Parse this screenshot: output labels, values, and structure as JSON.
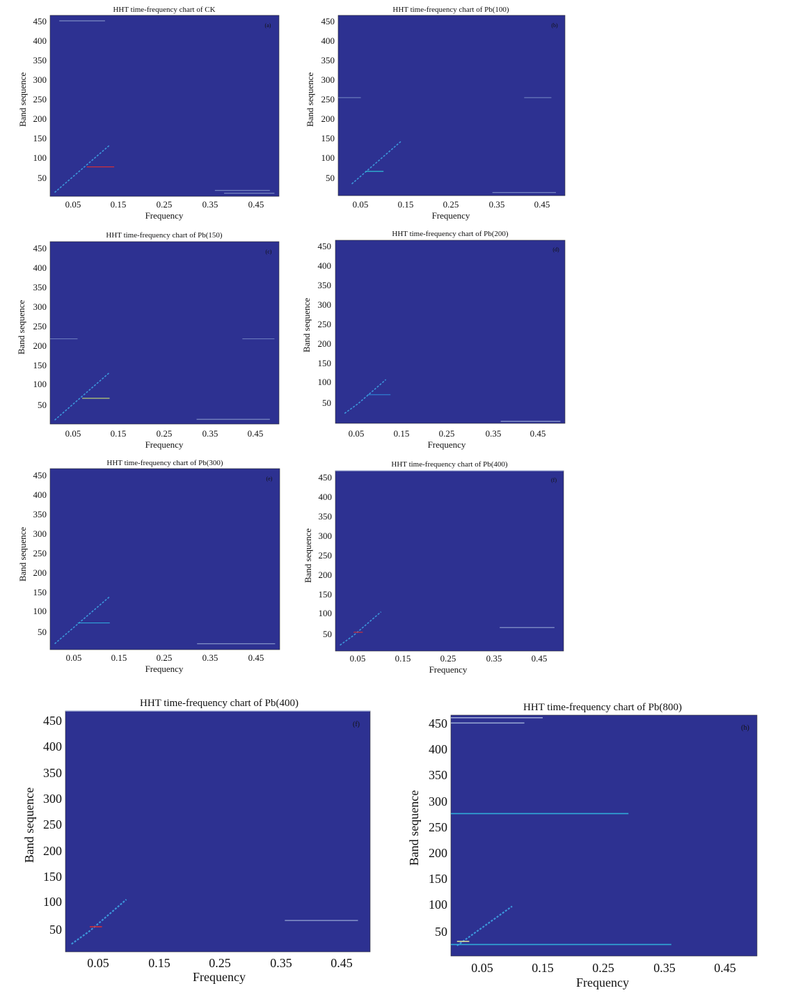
{
  "chart_data": [
    {
      "type": "heatmap",
      "panel_label": "(a)",
      "title": "HHT time-frequency chart of CK",
      "xlabel": "Frequency",
      "ylabel": "Band sequence",
      "xticks": [
        0.05,
        0.15,
        0.25,
        0.35,
        0.45
      ],
      "yticks": [
        50,
        100,
        150,
        200,
        250,
        300,
        350,
        400,
        450
      ],
      "xlim": [
        0.0,
        0.5
      ],
      "ylim": [
        0,
        460
      ],
      "background_color": "#2d3191",
      "ridge": [
        [
          0.01,
          10
        ],
        [
          0.04,
          40
        ],
        [
          0.07,
          70
        ],
        [
          0.1,
          100
        ],
        [
          0.13,
          130
        ]
      ],
      "lines": [
        {
          "y": 446,
          "x0": 0.02,
          "x1": 0.12,
          "color": "#8fa0d0"
        },
        {
          "y": 75,
          "x0": 0.08,
          "x1": 0.14,
          "color": "#e03030"
        },
        {
          "y": 15,
          "x0": 0.36,
          "x1": 0.48,
          "color": "#7f8fc8"
        },
        {
          "y": 8,
          "x0": 0.38,
          "x1": 0.49,
          "color": "#7f8fc8"
        }
      ]
    },
    {
      "type": "heatmap",
      "panel_label": "(b)",
      "title": "HHT time-frequency chart of Pb(100)",
      "xlabel": "Frequency",
      "ylabel": "Band sequence",
      "xticks": [
        0.05,
        0.15,
        0.25,
        0.35,
        0.45
      ],
      "yticks": [
        50,
        100,
        150,
        200,
        250,
        300,
        350,
        400,
        450
      ],
      "xlim": [
        0.0,
        0.5
      ],
      "ylim": [
        0,
        460
      ],
      "background_color": "#2d3191",
      "ridge": [
        [
          0.03,
          30
        ],
        [
          0.055,
          55
        ],
        [
          0.08,
          80
        ],
        [
          0.11,
          110
        ],
        [
          0.14,
          140
        ]
      ],
      "lines": [
        {
          "y": 62,
          "x0": 0.06,
          "x1": 0.1,
          "color": "#30d0e0"
        },
        {
          "y": 250,
          "x0": 0.0,
          "x1": 0.05,
          "color": "#6f80c0"
        },
        {
          "y": 250,
          "x0": 0.41,
          "x1": 0.47,
          "color": "#6f80c0"
        },
        {
          "y": 8,
          "x0": 0.34,
          "x1": 0.48,
          "color": "#7f8fc8"
        }
      ]
    },
    {
      "type": "heatmap",
      "panel_label": "(c)",
      "title": "HHT time-frequency chart of Pb(150)",
      "xlabel": "Frequency",
      "ylabel": "Band sequence",
      "xticks": [
        0.05,
        0.15,
        0.25,
        0.35,
        0.45
      ],
      "yticks": [
        50,
        100,
        150,
        200,
        250,
        300,
        350,
        400,
        450
      ],
      "xlim": [
        0.0,
        0.5
      ],
      "ylim": [
        0,
        460
      ],
      "background_color": "#2d3191",
      "ridge": [
        [
          0.01,
          10
        ],
        [
          0.04,
          40
        ],
        [
          0.07,
          70
        ],
        [
          0.1,
          100
        ],
        [
          0.13,
          130
        ]
      ],
      "lines": [
        {
          "y": 65,
          "x0": 0.07,
          "x1": 0.13,
          "color": "#c8e070"
        },
        {
          "y": 215,
          "x0": 0.0,
          "x1": 0.06,
          "color": "#6f80c0"
        },
        {
          "y": 215,
          "x0": 0.42,
          "x1": 0.49,
          "color": "#6f80c0"
        },
        {
          "y": 12,
          "x0": 0.32,
          "x1": 0.48,
          "color": "#8f9fd0"
        }
      ]
    },
    {
      "type": "heatmap",
      "panel_label": "(d)",
      "title": "HHT time-frequency chart of Pb(200)",
      "xlabel": "Frequency",
      "ylabel": "Band sequence",
      "xticks": [
        0.05,
        0.15,
        0.25,
        0.35,
        0.45
      ],
      "yticks": [
        50,
        100,
        150,
        200,
        250,
        300,
        350,
        400,
        450
      ],
      "xlim": [
        0.0,
        0.5
      ],
      "ylim": [
        0,
        460
      ],
      "background_color": "#2d3191",
      "ridge": [
        [
          0.02,
          25
        ],
        [
          0.05,
          50
        ],
        [
          0.08,
          80
        ],
        [
          0.11,
          110
        ]
      ],
      "lines": [
        {
          "y": 72,
          "x0": 0.07,
          "x1": 0.12,
          "color": "#3090e0"
        },
        {
          "y": 5,
          "x0": 0.36,
          "x1": 0.49,
          "color": "#9fb0d8"
        }
      ]
    },
    {
      "type": "heatmap",
      "panel_label": "(e)",
      "title": "HHT time-frequency chart of Pb(300)",
      "xlabel": "Frequency",
      "ylabel": "Band sequence",
      "xticks": [
        0.05,
        0.15,
        0.25,
        0.35,
        0.45
      ],
      "yticks": [
        50,
        100,
        150,
        200,
        250,
        300,
        350,
        400,
        450
      ],
      "xlim": [
        0.0,
        0.5
      ],
      "ylim": [
        0,
        460
      ],
      "background_color": "#2d3191",
      "ridge": [
        [
          0.01,
          15
        ],
        [
          0.04,
          45
        ],
        [
          0.07,
          75
        ],
        [
          0.1,
          105
        ],
        [
          0.13,
          135
        ]
      ],
      "lines": [
        {
          "y": 68,
          "x0": 0.06,
          "x1": 0.13,
          "color": "#30b0e0"
        },
        {
          "y": 15,
          "x0": 0.32,
          "x1": 0.49,
          "color": "#8f9fd0"
        }
      ]
    },
    {
      "type": "heatmap",
      "panel_label": "(f)",
      "title": "HHT time-frequency chart of Pb(400)",
      "xlabel": "Frequency",
      "ylabel": "Band sequence",
      "xticks": [
        0.05,
        0.15,
        0.25,
        0.35,
        0.45
      ],
      "yticks": [
        50,
        100,
        150,
        200,
        250,
        300,
        350,
        400,
        450
      ],
      "xlim": [
        0.0,
        0.5
      ],
      "ylim": [
        0,
        460
      ],
      "background_color": "#2d3191",
      "ridge": [
        [
          0.01,
          15
        ],
        [
          0.04,
          40
        ],
        [
          0.07,
          70
        ],
        [
          0.1,
          100
        ]
      ],
      "lines": [
        {
          "y": 48,
          "x0": 0.04,
          "x1": 0.06,
          "color": "#e03030"
        },
        {
          "y": 460,
          "x0": 0.0,
          "x1": 0.5,
          "color": "#b0bce0"
        },
        {
          "y": 60,
          "x0": 0.36,
          "x1": 0.48,
          "color": "#8f9fd0"
        }
      ]
    },
    {
      "type": "heatmap",
      "panel_label": "(f)",
      "title": "HHT time-frequency chart of Pb(400)",
      "xlabel": "Frequency",
      "ylabel": "Band sequence",
      "xticks": [
        0.05,
        0.15,
        0.25,
        0.35,
        0.45
      ],
      "yticks": [
        50,
        100,
        150,
        200,
        250,
        300,
        350,
        400,
        450
      ],
      "xlim": [
        0.0,
        0.5
      ],
      "ylim": [
        0,
        460
      ],
      "background_color": "#2d3191",
      "ridge": [
        [
          0.01,
          15
        ],
        [
          0.04,
          40
        ],
        [
          0.07,
          70
        ],
        [
          0.1,
          100
        ]
      ],
      "lines": [
        {
          "y": 48,
          "x0": 0.04,
          "x1": 0.06,
          "color": "#e03030"
        },
        {
          "y": 460,
          "x0": 0.0,
          "x1": 0.5,
          "color": "#b0bce0"
        },
        {
          "y": 60,
          "x0": 0.36,
          "x1": 0.48,
          "color": "#8f9fd0"
        }
      ]
    },
    {
      "type": "heatmap",
      "panel_label": "(h)",
      "title": "HHT time-frequency chart of Pb(800)",
      "xlabel": "Frequency",
      "ylabel": "Band sequence",
      "xticks": [
        0.05,
        0.15,
        0.25,
        0.35,
        0.45
      ],
      "yticks": [
        50,
        100,
        150,
        200,
        250,
        300,
        350,
        400,
        450
      ],
      "xlim": [
        0.0,
        0.5
      ],
      "ylim": [
        0,
        460
      ],
      "background_color": "#2d3191",
      "ridge": [
        [
          0.01,
          20
        ],
        [
          0.04,
          45
        ],
        [
          0.07,
          70
        ],
        [
          0.1,
          95
        ]
      ],
      "lines": [
        {
          "y": 272,
          "x0": 0.0,
          "x1": 0.29,
          "color": "#30b8e0"
        },
        {
          "y": 22,
          "x0": 0.0,
          "x1": 0.36,
          "color": "#30b8e0"
        },
        {
          "y": 28,
          "x0": 0.01,
          "x1": 0.03,
          "color": "#e8f0a0"
        },
        {
          "y": 455,
          "x0": 0.0,
          "x1": 0.15,
          "color": "#b0bce0"
        },
        {
          "y": 445,
          "x0": 0.0,
          "x1": 0.12,
          "color": "#9fb0d8"
        }
      ]
    }
  ]
}
